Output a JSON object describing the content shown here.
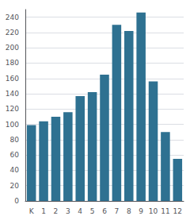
{
  "chart_data": {
    "type": "bar",
    "categories": [
      "K",
      "1",
      "2",
      "3",
      "4",
      "5",
      "6",
      "7",
      "8",
      "9",
      "10",
      "11",
      "12"
    ],
    "values": [
      99,
      104,
      110,
      116,
      137,
      142,
      165,
      230,
      222,
      246,
      156,
      90,
      55
    ],
    "color": "#2e7191",
    "ylim": [
      0,
      250
    ],
    "yticks": [
      0,
      20,
      40,
      60,
      80,
      100,
      120,
      140,
      160,
      180,
      200,
      220,
      240
    ],
    "grid": true
  }
}
